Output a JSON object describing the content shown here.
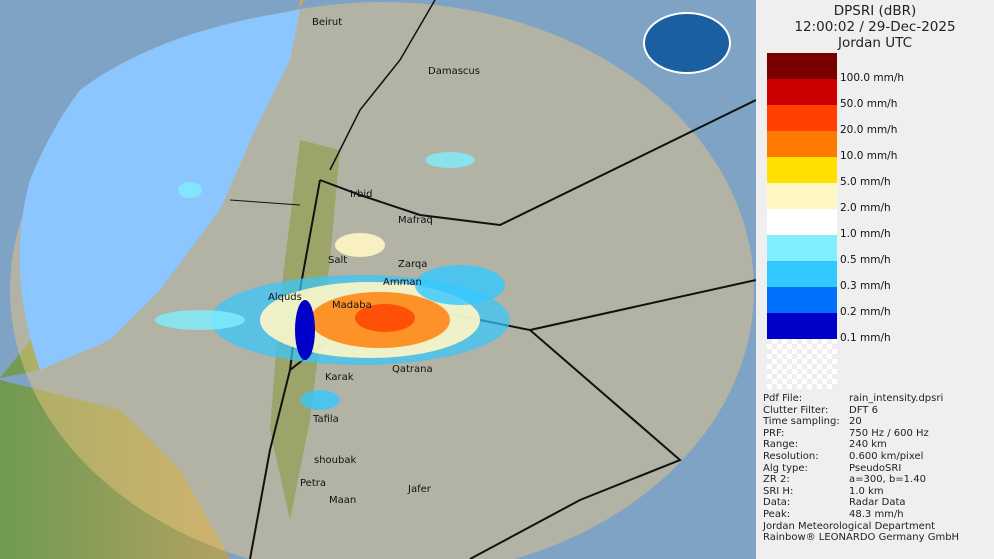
{
  "header": {
    "product": "DPSRI (dBR)",
    "datetime": "12:00:02 / 29-Dec-2025",
    "region": "Jordan UTC"
  },
  "logo": {
    "text": "Jordan Meteorological Department"
  },
  "legend": [
    {
      "label": "100.0 mm/h",
      "color": "#7a0000"
    },
    {
      "label": "50.0 mm/h",
      "color": "#cc0000"
    },
    {
      "label": "20.0 mm/h",
      "color": "#ff4000"
    },
    {
      "label": "10.0 mm/h",
      "color": "#ff7a00"
    },
    {
      "label": "5.0 mm/h",
      "color": "#ffe000"
    },
    {
      "label": "2.0 mm/h",
      "color": "#fff6c4"
    },
    {
      "label": "1.0 mm/h",
      "color": "#ffffff"
    },
    {
      "label": "0.5 mm/h",
      "color": "#7feeff"
    },
    {
      "label": "0.3 mm/h",
      "color": "#33c8ff"
    },
    {
      "label": "0.2 mm/h",
      "color": "#0070ff"
    },
    {
      "label": "0.1 mm/h",
      "color": "#0000c8"
    }
  ],
  "info": [
    {
      "k": "Pdf File:",
      "v": "rain_intensity.dpsri"
    },
    {
      "k": "Clutter Filter:",
      "v": "DFT 6"
    },
    {
      "k": "Time sampling:",
      "v": "20"
    },
    {
      "k": "PRF:",
      "v": "750 Hz / 600 Hz"
    },
    {
      "k": "Range:",
      "v": "240 km"
    },
    {
      "k": "Resolution:",
      "v": "0.600 km/pixel"
    },
    {
      "k": "Alg type:",
      "v": "PseudoSRI"
    },
    {
      "k": "ZR 2:",
      "v": "a=300, b=1.40"
    },
    {
      "k": "SRI H:",
      "v": "1.0 km"
    },
    {
      "k": "Data:",
      "v": "Radar Data"
    },
    {
      "k": "Peak:",
      "v": "48.3 mm/h"
    }
  ],
  "credits": [
    "Jordan Meteorological Department",
    "Rainbow® LEONARDO Germany GmbH"
  ],
  "cities": {
    "beirut": "Beirut",
    "damascus": "Damascus",
    "irbid": "Irbid",
    "mafraq": "Mafraq",
    "salt": "Salt",
    "zarqa": "Zarqa",
    "amman": "Amman",
    "alquds": "Alquds",
    "madaba": "Madaba",
    "karak": "Karak",
    "qatrana": "Qatrana",
    "tafila": "Tafila",
    "shoubak": "shoubak",
    "petra": "Petra",
    "maan": "Maan",
    "jafer": "Jafer"
  }
}
